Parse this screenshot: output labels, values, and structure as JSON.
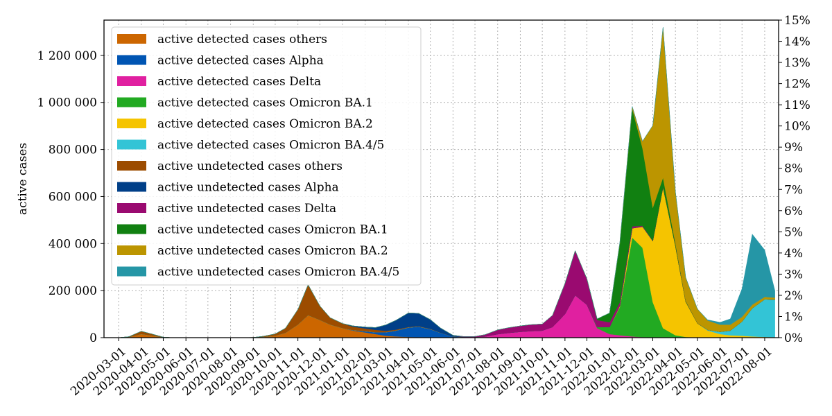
{
  "chart_data": {
    "type": "area",
    "stacked": true,
    "ylabel": "active cases",
    "y2label": "",
    "xlim": [
      "2020-02-10",
      "2022-08-20"
    ],
    "ylim": [
      0,
      1350000
    ],
    "y2lim": [
      0,
      15
    ],
    "grid": true,
    "legend_position": "top-left",
    "x_ticks": [
      "2020-03-01",
      "2020-04-01",
      "2020-05-01",
      "2020-06-01",
      "2020-07-01",
      "2020-08-01",
      "2020-09-01",
      "2020-10-01",
      "2020-11-01",
      "2020-12-01",
      "2021-01-01",
      "2021-02-01",
      "2021-03-01",
      "2021-04-01",
      "2021-05-01",
      "2021-06-01",
      "2021-07-01",
      "2021-08-01",
      "2021-09-01",
      "2021-10-01",
      "2021-11-01",
      "2021-12-01",
      "2022-01-01",
      "2022-02-01",
      "2022-03-01",
      "2022-04-01",
      "2022-05-01",
      "2022-06-01",
      "2022-07-01",
      "2022-08-01"
    ],
    "y_ticks": [
      {
        "value": 0,
        "label": "0"
      },
      {
        "value": 200000,
        "label": "200 000"
      },
      {
        "value": 400000,
        "label": "400 000"
      },
      {
        "value": 600000,
        "label": "600 000"
      },
      {
        "value": 800000,
        "label": "800 000"
      },
      {
        "value": 1000000,
        "label": "1 000 000"
      },
      {
        "value": 1200000,
        "label": "1 200 000"
      }
    ],
    "y2_ticks": [
      {
        "value": 0,
        "label": "0%"
      },
      {
        "value": 1,
        "label": "1%"
      },
      {
        "value": 2,
        "label": "2%"
      },
      {
        "value": 3,
        "label": "3%"
      },
      {
        "value": 4,
        "label": "4%"
      },
      {
        "value": 5,
        "label": "5%"
      },
      {
        "value": 6,
        "label": "6%"
      },
      {
        "value": 7,
        "label": "7%"
      },
      {
        "value": 8,
        "label": "8%"
      },
      {
        "value": 9,
        "label": "9%"
      },
      {
        "value": 10,
        "label": "10%"
      },
      {
        "value": 11,
        "label": "11%"
      },
      {
        "value": 12,
        "label": "12%"
      },
      {
        "value": 13,
        "label": "13%"
      },
      {
        "value": 14,
        "label": "14%"
      },
      {
        "value": 15,
        "label": "15%"
      }
    ],
    "x": [
      "2020-02-15",
      "2020-03-01",
      "2020-03-15",
      "2020-04-01",
      "2020-04-15",
      "2020-05-01",
      "2020-05-15",
      "2020-06-01",
      "2020-07-01",
      "2020-08-01",
      "2020-09-01",
      "2020-09-15",
      "2020-10-01",
      "2020-10-15",
      "2020-11-01",
      "2020-11-15",
      "2020-12-01",
      "2020-12-15",
      "2021-01-01",
      "2021-01-15",
      "2021-02-01",
      "2021-02-15",
      "2021-03-01",
      "2021-03-15",
      "2021-04-01",
      "2021-04-15",
      "2021-05-01",
      "2021-05-15",
      "2021-06-01",
      "2021-06-15",
      "2021-07-01",
      "2021-07-15",
      "2021-08-01",
      "2021-08-15",
      "2021-09-01",
      "2021-09-15",
      "2021-10-01",
      "2021-10-15",
      "2021-11-01",
      "2021-11-15",
      "2021-12-01",
      "2021-12-15",
      "2022-01-01",
      "2022-01-15",
      "2022-02-01",
      "2022-02-15",
      "2022-03-01",
      "2022-03-15",
      "2022-04-01",
      "2022-04-15",
      "2022-05-01",
      "2022-05-15",
      "2022-06-01",
      "2022-06-15",
      "2022-07-01",
      "2022-07-15",
      "2022-08-01",
      "2022-08-15"
    ],
    "series": [
      {
        "name": "active detected cases others",
        "color": "#cc6600",
        "values": [
          0,
          0,
          2000,
          15000,
          9000,
          1000,
          0,
          0,
          0,
          0,
          500,
          3000,
          8000,
          20000,
          55000,
          95000,
          75000,
          55000,
          40000,
          30000,
          22000,
          15000,
          8000,
          5000,
          3000,
          2000,
          1000,
          500,
          0,
          0,
          0,
          0,
          0,
          0,
          0,
          0,
          0,
          0,
          0,
          0,
          0,
          0,
          0,
          0,
          0,
          0,
          0,
          0,
          0,
          0,
          0,
          0,
          0,
          0,
          0,
          0,
          0,
          0
        ]
      },
      {
        "name": "active detected cases Alpha",
        "color": "#0055b3",
        "values": [
          0,
          0,
          0,
          0,
          0,
          0,
          0,
          0,
          0,
          0,
          0,
          0,
          0,
          0,
          0,
          0,
          0,
          0,
          0,
          2000,
          5000,
          8000,
          15000,
          25000,
          40000,
          45000,
          35000,
          20000,
          5000,
          1000,
          0,
          0,
          0,
          0,
          0,
          0,
          0,
          0,
          0,
          0,
          0,
          0,
          0,
          0,
          0,
          0,
          0,
          0,
          0,
          0,
          0,
          0,
          0,
          0,
          0,
          0,
          0,
          0
        ]
      },
      {
        "name": "active detected cases Delta",
        "color": "#e020a0",
        "values": [
          0,
          0,
          0,
          0,
          0,
          0,
          0,
          0,
          0,
          0,
          0,
          0,
          0,
          0,
          0,
          0,
          0,
          0,
          0,
          0,
          0,
          0,
          0,
          0,
          0,
          0,
          0,
          0,
          0,
          1000,
          2000,
          5000,
          15000,
          20000,
          25000,
          28000,
          30000,
          45000,
          100000,
          180000,
          140000,
          40000,
          15000,
          10000,
          5000,
          2000,
          1000,
          0,
          0,
          0,
          0,
          0,
          0,
          0,
          0,
          0,
          0,
          0
        ]
      },
      {
        "name": "active detected cases Omicron BA.1",
        "color": "#22aa22",
        "values": [
          0,
          0,
          0,
          0,
          0,
          0,
          0,
          0,
          0,
          0,
          0,
          0,
          0,
          0,
          0,
          0,
          0,
          0,
          0,
          0,
          0,
          0,
          0,
          0,
          0,
          0,
          0,
          0,
          0,
          0,
          0,
          0,
          0,
          0,
          0,
          0,
          0,
          0,
          0,
          0,
          0,
          5000,
          30000,
          120000,
          420000,
          380000,
          150000,
          40000,
          10000,
          3000,
          1000,
          0,
          0,
          0,
          0,
          0,
          0,
          0
        ]
      },
      {
        "name": "active detected cases Omicron BA.2",
        "color": "#f5c400",
        "values": [
          0,
          0,
          0,
          0,
          0,
          0,
          0,
          0,
          0,
          0,
          0,
          0,
          0,
          0,
          0,
          0,
          0,
          0,
          0,
          0,
          0,
          0,
          0,
          0,
          0,
          0,
          0,
          0,
          0,
          0,
          0,
          0,
          0,
          0,
          0,
          0,
          0,
          0,
          0,
          0,
          0,
          0,
          0,
          5000,
          40000,
          90000,
          260000,
          600000,
          380000,
          150000,
          60000,
          30000,
          15000,
          10000,
          8000,
          5000,
          3000,
          2000
        ]
      },
      {
        "name": "active detected cases Omicron BA.4/5",
        "color": "#33c4d6",
        "values": [
          0,
          0,
          0,
          0,
          0,
          0,
          0,
          0,
          0,
          0,
          0,
          0,
          0,
          0,
          0,
          0,
          0,
          0,
          0,
          0,
          0,
          0,
          0,
          0,
          0,
          0,
          0,
          0,
          0,
          0,
          0,
          0,
          0,
          0,
          0,
          0,
          0,
          0,
          0,
          0,
          0,
          0,
          0,
          0,
          0,
          0,
          0,
          0,
          0,
          0,
          0,
          3000,
          10000,
          20000,
          60000,
          120000,
          160000,
          160000
        ]
      },
      {
        "name": "active undetected cases others",
        "color": "#9c4c00",
        "values": [
          0,
          0,
          2000,
          12000,
          7000,
          1000,
          0,
          0,
          0,
          0,
          500,
          3000,
          8000,
          20000,
          65000,
          130000,
          60000,
          30000,
          20000,
          15000,
          12000,
          10000,
          6000,
          4000,
          2000,
          1500,
          1000,
          500,
          0,
          0,
          0,
          0,
          0,
          0,
          0,
          0,
          0,
          0,
          0,
          0,
          0,
          0,
          0,
          0,
          0,
          0,
          0,
          0,
          0,
          0,
          0,
          0,
          0,
          0,
          0,
          0,
          0,
          0
        ]
      },
      {
        "name": "active undetected cases Alpha",
        "color": "#003f88",
        "values": [
          0,
          0,
          0,
          0,
          0,
          0,
          0,
          0,
          0,
          0,
          0,
          0,
          0,
          0,
          0,
          0,
          0,
          0,
          0,
          3000,
          6000,
          10000,
          25000,
          40000,
          60000,
          55000,
          40000,
          20000,
          5000,
          1000,
          0,
          0,
          0,
          0,
          0,
          0,
          0,
          0,
          0,
          0,
          0,
          0,
          0,
          0,
          0,
          0,
          0,
          0,
          0,
          0,
          0,
          0,
          0,
          0,
          0,
          0,
          0,
          0
        ]
      },
      {
        "name": "active undetected cases Delta",
        "color": "#9a0a70",
        "values": [
          0,
          0,
          0,
          0,
          0,
          0,
          0,
          0,
          0,
          0,
          0,
          0,
          0,
          0,
          0,
          0,
          0,
          0,
          0,
          0,
          0,
          0,
          0,
          0,
          0,
          0,
          0,
          0,
          0,
          2000,
          3000,
          8000,
          18000,
          22000,
          25000,
          27000,
          28000,
          50000,
          130000,
          190000,
          110000,
          30000,
          20000,
          15000,
          8000,
          3000,
          1000,
          0,
          0,
          0,
          0,
          0,
          0,
          0,
          0,
          0,
          0,
          0
        ]
      },
      {
        "name": "active undetected cases Omicron BA.1",
        "color": "#118011",
        "values": [
          0,
          0,
          0,
          0,
          0,
          0,
          0,
          0,
          0,
          0,
          0,
          0,
          0,
          0,
          0,
          0,
          0,
          0,
          0,
          0,
          0,
          0,
          0,
          0,
          0,
          0,
          0,
          0,
          0,
          0,
          0,
          0,
          0,
          0,
          0,
          0,
          0,
          0,
          0,
          0,
          0,
          5000,
          40000,
          250000,
          500000,
          330000,
          140000,
          40000,
          10000,
          3000,
          1000,
          0,
          0,
          0,
          0,
          0,
          0,
          0
        ]
      },
      {
        "name": "active undetected cases Omicron BA.2",
        "color": "#bc9500",
        "values": [
          0,
          0,
          0,
          0,
          0,
          0,
          0,
          0,
          0,
          0,
          0,
          0,
          0,
          0,
          0,
          0,
          0,
          0,
          0,
          0,
          0,
          0,
          0,
          0,
          0,
          0,
          0,
          0,
          0,
          0,
          0,
          0,
          0,
          0,
          0,
          0,
          0,
          0,
          0,
          0,
          0,
          0,
          0,
          5000,
          10000,
          30000,
          350000,
          640000,
          220000,
          100000,
          60000,
          40000,
          30000,
          25000,
          20000,
          15000,
          10000,
          8000
        ]
      },
      {
        "name": "active undetected cases Omicron BA.4/5",
        "color": "#2596a6",
        "values": [
          0,
          0,
          0,
          0,
          0,
          0,
          0,
          0,
          0,
          0,
          0,
          0,
          0,
          0,
          0,
          0,
          0,
          0,
          0,
          0,
          0,
          0,
          0,
          0,
          0,
          0,
          0,
          0,
          0,
          0,
          0,
          0,
          0,
          0,
          0,
          0,
          0,
          0,
          0,
          0,
          0,
          0,
          0,
          0,
          0,
          0,
          0,
          0,
          0,
          0,
          0,
          3000,
          10000,
          25000,
          120000,
          300000,
          200000,
          30000
        ]
      }
    ]
  }
}
